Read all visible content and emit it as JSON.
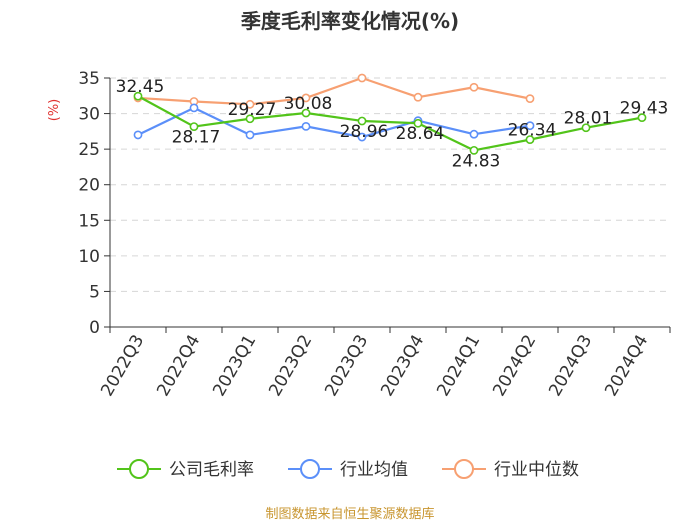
{
  "chart_data": {
    "type": "line",
    "title": "季度毛利率变化情况(%)",
    "ylabel": "(%)",
    "ylim": [
      0,
      35
    ],
    "yticks": [
      0,
      5,
      10,
      15,
      20,
      25,
      30,
      35
    ],
    "grid": true,
    "legend_position": "bottom",
    "categories": [
      "2022Q3",
      "2022Q4",
      "2023Q1",
      "2023Q2",
      "2023Q3",
      "2023Q4",
      "2024Q1",
      "2024Q2",
      "2024Q3",
      "2024Q4"
    ],
    "series": [
      {
        "name": "公司毛利率",
        "color": "#52c41a",
        "show_labels": true,
        "values": [
          32.45,
          28.17,
          29.27,
          30.08,
          28.96,
          28.64,
          24.83,
          26.34,
          28.01,
          29.43
        ]
      },
      {
        "name": "行业均值",
        "color": "#5b8ff9",
        "show_labels": false,
        "values": [
          27.0,
          30.8,
          27.0,
          28.2,
          26.7,
          29.0,
          27.1,
          28.3,
          null,
          null
        ]
      },
      {
        "name": "行业中位数",
        "color": "#f7a072",
        "show_labels": false,
        "values": [
          32.2,
          31.7,
          31.3,
          32.2,
          35.0,
          32.3,
          33.7,
          32.1,
          null,
          null
        ]
      }
    ],
    "source": "制图数据来自恒生聚源数据库"
  }
}
